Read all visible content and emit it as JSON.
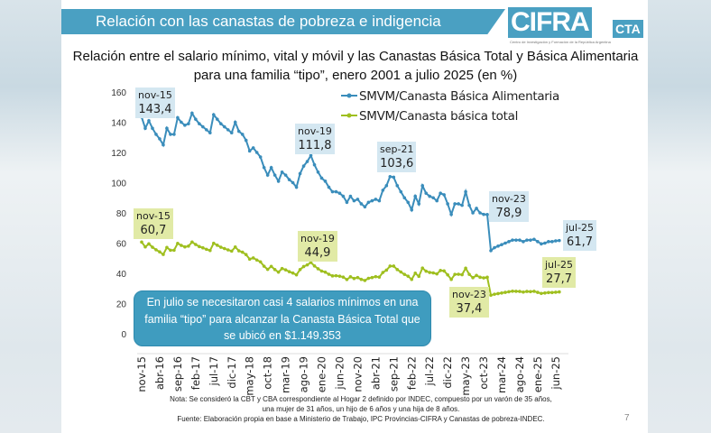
{
  "header": {
    "title": "Relación con las canastas de pobreza e indigencia"
  },
  "logo": {
    "name": "CIFRA",
    "suffix": "CTA",
    "subtitle": "Centro de Investigación y Formación de la República Argentina"
  },
  "page_number": "7",
  "callout": "En julio se necesitaron casi 4 salarios mínimos en una familia “tipo” para alcanzar la Canasta Básica Total que se ubicó en $1.149.353",
  "note": {
    "line1": "Nota: Se consideró la CBT y CBA correspondiente al Hogar 2 definido por INDEC, compuesto por un varón de 35 años,",
    "line2": "una mujer de 31 años, un hijo de 6 años y una hija de 8 años.",
    "line3": "Fuente: Elaboración propia en base a Ministerio de Trabajo, IPC Provincias-CIFRA y Canastas de pobreza-INDEC."
  },
  "chart_data": {
    "type": "line",
    "title": "Relación entre el salario mínimo, vital y móvil y las Canastas Básica Total y Básica Alimentaria para una familia “tipo”, enero 2001 a julio 2025 (en %)",
    "x_start": "nov-15",
    "x_end": "jul-25",
    "x_frequency": "monthly",
    "tick_labels": [
      "nov-15",
      "abr-16",
      "sep-16",
      "feb-17",
      "jul-17",
      "dic-17",
      "may-18",
      "oct-18",
      "mar-19",
      "ago-19",
      "ene-20",
      "jun-20",
      "nov-20",
      "abr-21",
      "sep-21",
      "feb-22",
      "jul-22",
      "dic-22",
      "may-23",
      "oct-23",
      "mar-24",
      "ago-24",
      "ene-25",
      "jun-25"
    ],
    "ylim": [
      0,
      160
    ],
    "yticks": [
      0,
      20,
      40,
      60,
      80,
      100,
      120,
      140,
      160
    ],
    "grid": false,
    "legend": "top-right",
    "series": [
      {
        "name": "SMVM/Canasta Básica Alimentaria",
        "color": "#3a8dbb",
        "values": [
          143.4,
          136,
          141,
          136,
          132,
          129,
          125,
          136,
          132,
          132,
          143,
          140,
          138,
          139,
          146,
          142,
          139,
          137,
          135,
          133,
          145,
          142,
          139,
          137,
          135,
          133,
          140,
          134,
          132,
          128,
          121,
          123,
          120,
          117,
          110,
          105,
          110,
          105,
          101,
          107,
          105,
          102,
          100,
          97,
          106,
          111,
          114,
          118,
          111.8,
          107,
          103,
          101,
          97,
          94,
          94,
          93,
          91,
          87,
          91,
          88,
          89,
          86,
          84,
          87,
          88,
          89,
          88,
          95,
          98,
          104,
          103.6,
          98,
          94,
          90,
          87,
          82,
          91,
          86,
          98,
          93,
          91,
          90,
          88,
          93,
          92,
          86,
          79,
          86,
          86,
          85,
          94,
          85,
          80,
          83,
          80,
          79,
          78.9,
          55,
          57,
          58,
          59,
          60,
          61,
          62,
          62,
          62,
          61,
          62,
          62,
          62.5,
          61,
          59.5,
          60,
          61,
          61,
          61.5,
          61.7
        ]
      },
      {
        "name": "SMVM/Canasta básica total",
        "color": "#9fbf1f",
        "values": [
          60.7,
          57.5,
          59.5,
          57.3,
          55.6,
          54.2,
          52.5,
          57.1,
          55.3,
          55.3,
          59.8,
          58.5,
          57.5,
          58,
          60.7,
          59.1,
          57.7,
          56.9,
          55.9,
          55.1,
          59.9,
          58.6,
          57.3,
          56.4,
          55.5,
          54.7,
          57.4,
          54.9,
          54,
          52.4,
          49.4,
          50.2,
          48.8,
          47.6,
          44.7,
          42.6,
          44.6,
          42.5,
          40.8,
          43.2,
          42.3,
          41.1,
          40.2,
          39,
          42.5,
          44.5,
          45.6,
          47.2,
          44.9,
          43,
          41.5,
          40.8,
          39.4,
          38.3,
          38.4,
          38.1,
          37.5,
          35.9,
          37.7,
          36.6,
          37.2,
          36,
          35.3,
          36.7,
          37.2,
          37.8,
          37.5,
          40.6,
          42.1,
          44.8,
          44.8,
          42.5,
          40.9,
          39.3,
          38.1,
          36,
          40.1,
          38,
          43.5,
          41.4,
          40.6,
          40.3,
          39.6,
          41.9,
          41.6,
          39,
          36,
          39.3,
          39.4,
          39.1,
          43.4,
          39.3,
          37.1,
          38.6,
          37.4,
          37,
          37.4,
          25.5,
          26.2,
          26.6,
          27,
          27.4,
          27.8,
          28.2,
          28.1,
          28,
          27.6,
          28,
          27.9,
          28.1,
          27.4,
          26.7,
          27,
          27.3,
          27.3,
          27.5,
          27.7
        ]
      }
    ],
    "annotations": {
      "blue": [
        {
          "date": "nov-15",
          "value": "143,4"
        },
        {
          "date": "nov-19",
          "value": "111,8"
        },
        {
          "date": "sep-21",
          "value": "103,6"
        },
        {
          "date": "nov-23",
          "value": "78,9"
        },
        {
          "date": "jul-25",
          "value": "61,7"
        }
      ],
      "green": [
        {
          "date": "nov-15",
          "value": "60,7"
        },
        {
          "date": "nov-19",
          "value": "44,9"
        },
        {
          "date": "nov-23",
          "value": "37,4"
        },
        {
          "date": "jul-25",
          "value": "27,7"
        }
      ]
    }
  }
}
